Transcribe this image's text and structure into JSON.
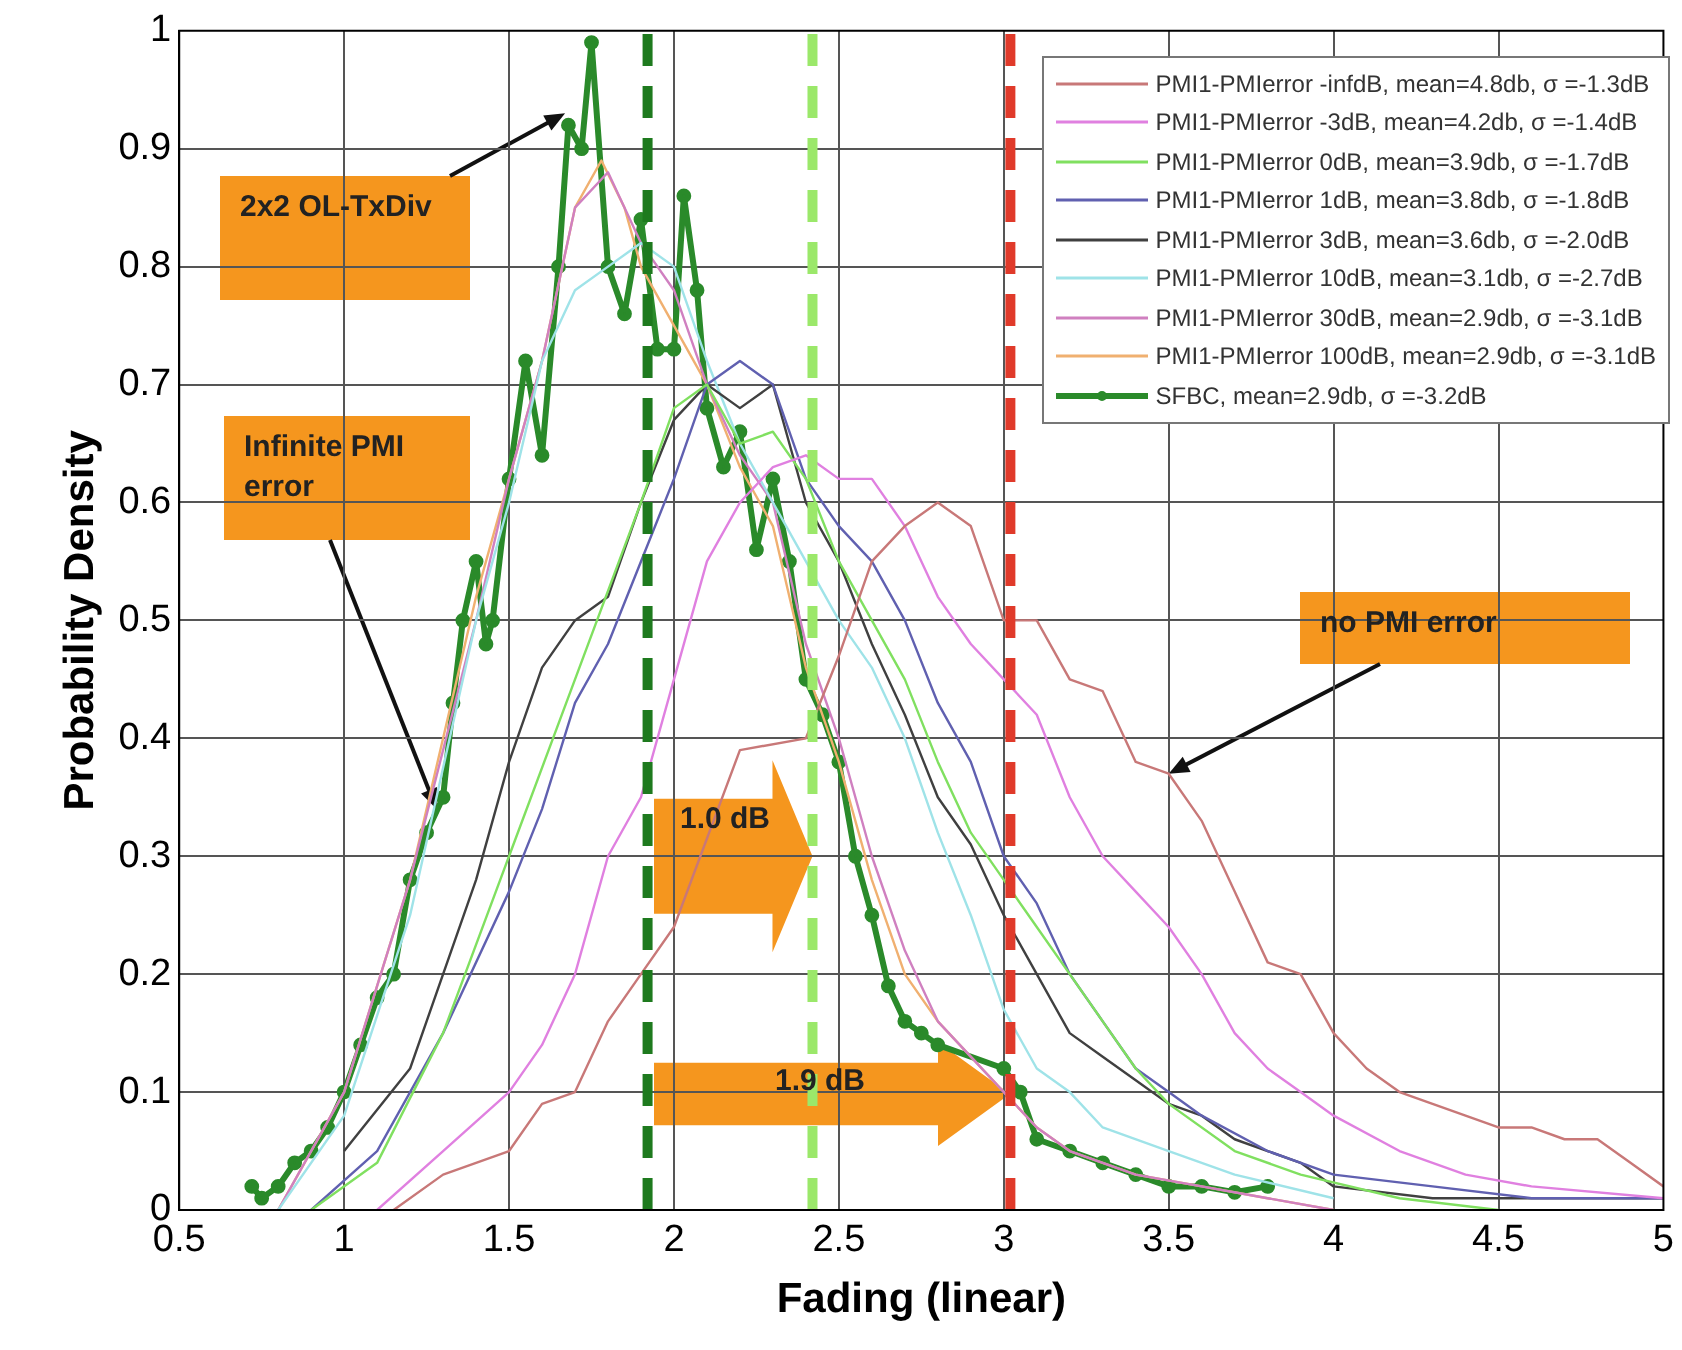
{
  "chart_data": {
    "type": "line",
    "xlabel": "Fading (linear)",
    "ylabel": "Probability Density",
    "xlim": [
      0.5,
      5
    ],
    "xticks": [
      0.5,
      1,
      1.5,
      2,
      2.5,
      3,
      3.5,
      4,
      4.5,
      5
    ],
    "ylim": [
      0,
      1
    ],
    "yticks": [
      0,
      0.1,
      0.2,
      0.3,
      0.4,
      0.5,
      0.6,
      0.7,
      0.8,
      0.9,
      1
    ],
    "grid": true,
    "legend": "top right",
    "annotations": [
      {
        "text": "2x2 OL-TxDiv",
        "x": 1.67,
        "y": 0.93
      },
      {
        "text": "Infinite PMI error",
        "x": 1.28,
        "y": 0.34
      },
      {
        "text": "no PMI error",
        "x": 3.5,
        "y": 0.37
      },
      {
        "text": "1.0 dB",
        "x": 2.42,
        "y": 0.3
      },
      "1.9 dB"
    ],
    "ref_lines": [
      {
        "axis": "x",
        "value": 1.92,
        "color": "#1e7a1e",
        "line_style": "dashed"
      },
      {
        "axis": "x",
        "value": 2.42,
        "color": "#9be86a",
        "line_style": "dashed"
      },
      {
        "axis": "x",
        "value": 3.02,
        "color": "#e03a2a",
        "line_style": "dashed"
      }
    ],
    "series": [
      {
        "name": "PMI1-PMIerror -infdB, mean=4.8db, σ =-1.3dB",
        "color": "#c87878",
        "x": [
          1.15,
          1.3,
          1.5,
          1.6,
          1.7,
          1.8,
          1.9,
          2.0,
          2.1,
          2.2,
          2.3,
          2.4,
          2.5,
          2.6,
          2.7,
          2.8,
          2.9,
          3.0,
          3.1,
          3.2,
          3.3,
          3.4,
          3.5,
          3.6,
          3.7,
          3.8,
          3.9,
          4.0,
          4.1,
          4.2,
          4.3,
          4.4,
          4.5,
          4.6,
          4.7,
          4.8,
          4.9,
          5.0
        ],
        "values": [
          0.0,
          0.03,
          0.05,
          0.09,
          0.1,
          0.16,
          0.2,
          0.24,
          null,
          0.39,
          null,
          0.4,
          0.47,
          0.55,
          0.58,
          0.6,
          0.58,
          0.5,
          0.5,
          0.45,
          0.44,
          0.38,
          0.37,
          0.33,
          0.27,
          0.21,
          0.2,
          0.15,
          0.12,
          0.1,
          0.09,
          0.08,
          0.07,
          0.07,
          0.06,
          0.06,
          0.04,
          0.02
        ]
      },
      {
        "name": "PMI1-PMIerror -3dB, mean=4.2db, σ =-1.4dB",
        "color": "#e080e0",
        "x": [
          1.1,
          1.3,
          1.5,
          1.6,
          1.7,
          1.8,
          1.9,
          2.0,
          2.1,
          2.2,
          2.3,
          2.4,
          2.5,
          2.6,
          2.7,
          2.8,
          2.9,
          3.0,
          3.1,
          3.2,
          3.3,
          3.4,
          3.5,
          3.6,
          3.7,
          3.8,
          3.9,
          4.0,
          4.2,
          4.4,
          4.6,
          5.0
        ],
        "values": [
          0.0,
          0.05,
          0.1,
          0.14,
          0.2,
          0.3,
          0.35,
          0.45,
          0.55,
          0.6,
          0.63,
          0.64,
          0.62,
          0.62,
          0.58,
          0.52,
          0.48,
          0.45,
          0.42,
          0.35,
          0.3,
          0.27,
          0.24,
          0.2,
          0.15,
          0.12,
          0.1,
          0.08,
          0.05,
          0.03,
          0.02,
          0.01
        ]
      },
      {
        "name": "PMI1-PMIerror 0dB, mean=3.9db, σ =-1.7dB",
        "color": "#80e060",
        "x": [
          0.9,
          1.1,
          1.3,
          1.5,
          1.7,
          1.9,
          2.0,
          2.1,
          2.2,
          2.3,
          2.4,
          2.5,
          2.6,
          2.7,
          2.8,
          2.9,
          3.0,
          3.1,
          3.2,
          3.3,
          3.4,
          3.5,
          3.7,
          3.9,
          4.2,
          4.5
        ],
        "values": [
          0.0,
          0.04,
          0.15,
          0.3,
          0.45,
          0.6,
          0.68,
          0.7,
          0.65,
          0.66,
          0.62,
          0.55,
          0.5,
          0.45,
          0.38,
          0.32,
          0.28,
          0.24,
          0.2,
          0.16,
          0.12,
          0.09,
          0.05,
          0.03,
          0.01,
          0.0
        ]
      },
      {
        "name": "PMI1-PMIerror 1dB, mean=3.8db, σ =-1.8dB",
        "color": "#6060b0",
        "x": [
          0.9,
          1.1,
          1.3,
          1.5,
          1.6,
          1.7,
          1.8,
          1.9,
          2.0,
          2.1,
          2.2,
          2.3,
          2.4,
          2.5,
          2.6,
          2.7,
          2.8,
          2.9,
          3.0,
          3.1,
          3.2,
          3.3,
          3.4,
          3.5,
          3.6,
          3.8,
          4.0,
          4.3,
          4.6,
          5.0
        ],
        "values": [
          0.0,
          0.05,
          0.15,
          0.27,
          0.34,
          0.43,
          0.48,
          0.55,
          0.62,
          0.7,
          0.72,
          0.7,
          0.62,
          0.58,
          0.55,
          0.5,
          0.43,
          0.38,
          0.3,
          0.26,
          0.2,
          0.16,
          0.12,
          0.1,
          0.08,
          0.05,
          0.03,
          0.02,
          0.01,
          0.01
        ]
      },
      {
        "name": "PMI1-PMIerror 3dB, mean=3.6db, σ =-2.0dB",
        "color": "#404040",
        "x": [
          1.0,
          1.2,
          1.4,
          1.5,
          1.6,
          1.7,
          1.8,
          1.9,
          2.0,
          2.1,
          2.2,
          2.3,
          2.4,
          2.5,
          2.6,
          2.7,
          2.8,
          2.9,
          3.0,
          3.1,
          3.2,
          3.3,
          3.4,
          3.5,
          3.6,
          3.7,
          3.8,
          3.9,
          4.0,
          4.3,
          5.0
        ],
        "values": [
          0.05,
          0.12,
          0.28,
          0.38,
          0.46,
          0.5,
          0.52,
          0.6,
          0.67,
          0.7,
          0.68,
          0.7,
          0.6,
          0.55,
          0.48,
          0.42,
          0.35,
          0.31,
          0.25,
          0.2,
          0.15,
          0.13,
          0.11,
          0.09,
          0.08,
          0.06,
          0.05,
          0.04,
          0.02,
          0.01,
          0.01
        ]
      },
      {
        "name": "PMI1-PMIerror 10dB, mean=3.1db, σ =-2.7dB",
        "color": "#9fe3e8",
        "x": [
          0.8,
          1.0,
          1.2,
          1.4,
          1.5,
          1.6,
          1.7,
          1.8,
          1.9,
          2.0,
          2.1,
          2.2,
          2.3,
          2.4,
          2.5,
          2.6,
          2.7,
          2.8,
          2.9,
          3.0,
          3.1,
          3.2,
          3.3,
          3.5,
          3.7,
          4.0
        ],
        "values": [
          0.0,
          0.08,
          0.25,
          0.5,
          0.6,
          0.72,
          0.78,
          0.8,
          0.82,
          0.8,
          0.72,
          0.65,
          0.6,
          0.55,
          0.5,
          0.46,
          0.4,
          0.32,
          0.25,
          0.17,
          0.12,
          0.1,
          0.07,
          0.05,
          0.03,
          0.01
        ]
      },
      {
        "name": "PMI1-PMIerror 30dB, mean=2.9db, σ =-3.1dB",
        "color": "#d080c0",
        "x": [
          0.8,
          1.0,
          1.2,
          1.4,
          1.5,
          1.6,
          1.7,
          1.8,
          1.9,
          2.0,
          2.1,
          2.2,
          2.3,
          2.4,
          2.5,
          2.6,
          2.7,
          2.8,
          2.9,
          3.0,
          3.1,
          3.2,
          3.4,
          3.6,
          3.8,
          4.0
        ],
        "values": [
          0.0,
          0.1,
          0.28,
          0.5,
          0.62,
          0.72,
          0.85,
          0.88,
          0.82,
          0.78,
          0.7,
          0.64,
          0.6,
          0.48,
          0.4,
          0.3,
          0.22,
          0.16,
          null,
          null,
          0.07,
          0.05,
          0.03,
          0.02,
          0.01,
          0.0
        ]
      },
      {
        "name": "PMI1-PMIerror 100dB, mean=2.9db, σ =-3.1dB",
        "color": "#f0b070",
        "x": [
          0.8,
          1.0,
          1.2,
          1.4,
          1.5,
          1.6,
          1.7,
          1.78,
          1.85,
          1.9,
          2.0,
          2.1,
          2.2,
          2.3,
          2.4,
          2.5,
          2.6,
          2.7,
          2.8,
          2.9,
          3.0,
          3.1,
          3.2,
          3.4,
          3.6,
          3.8,
          4.0
        ],
        "values": [
          0.0,
          0.1,
          0.28,
          0.52,
          0.62,
          0.72,
          0.85,
          0.89,
          0.85,
          0.8,
          0.75,
          0.7,
          0.63,
          0.58,
          0.46,
          0.38,
          0.28,
          0.2,
          0.16,
          null,
          null,
          0.07,
          0.05,
          0.03,
          0.02,
          0.01,
          0.0
        ]
      },
      {
        "name": "SFBC, mean=2.9db, σ =-3.2dB",
        "color": "#2a8a2a",
        "marker": "circle",
        "x": [
          0.72,
          0.75,
          0.8,
          0.85,
          0.9,
          0.95,
          1.0,
          1.05,
          1.1,
          1.15,
          1.2,
          1.25,
          1.3,
          1.33,
          1.36,
          1.4,
          1.43,
          1.45,
          1.5,
          1.55,
          1.6,
          1.65,
          1.68,
          1.72,
          1.75,
          1.8,
          1.85,
          1.9,
          1.95,
          2.0,
          2.03,
          2.07,
          2.1,
          2.15,
          2.2,
          2.25,
          2.3,
          2.35,
          2.4,
          2.45,
          2.5,
          2.55,
          2.6,
          2.65,
          2.7,
          2.75,
          2.8,
          2.9,
          3.0,
          3.05,
          3.1,
          3.2,
          3.3,
          3.4,
          3.5,
          3.6,
          3.7,
          3.8
        ],
        "values": [
          0.02,
          0.01,
          0.02,
          0.04,
          0.05,
          0.07,
          0.1,
          0.14,
          0.18,
          0.2,
          0.28,
          0.32,
          0.35,
          0.43,
          0.5,
          0.55,
          0.48,
          0.5,
          0.62,
          0.72,
          0.64,
          0.8,
          0.92,
          0.9,
          0.99,
          0.8,
          0.76,
          0.84,
          0.73,
          0.73,
          0.86,
          0.78,
          0.68,
          0.63,
          0.66,
          0.56,
          0.62,
          0.55,
          0.45,
          0.42,
          0.38,
          0.3,
          0.25,
          0.19,
          0.16,
          0.15,
          0.14,
          null,
          0.12,
          0.1,
          0.06,
          0.05,
          0.04,
          0.03,
          0.02,
          0.02,
          0.015,
          0.02
        ]
      }
    ]
  }
}
